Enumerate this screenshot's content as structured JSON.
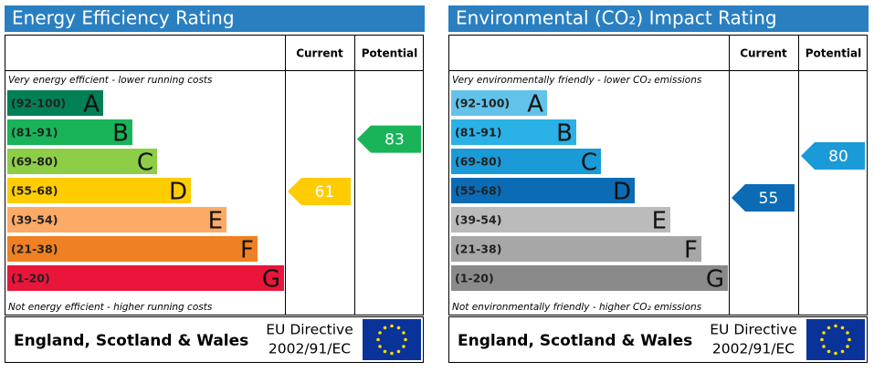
{
  "panels": [
    {
      "title": "Energy Efficiency Rating",
      "columns": [
        "Current",
        "Potential"
      ],
      "top_note": "Very energy efficient - lower running costs",
      "bottom_note": "Not energy efficient - higher running costs",
      "bands": [
        {
          "range": "(92-100)",
          "letter": "A",
          "color": "#008054"
        },
        {
          "range": "(81-91)",
          "letter": "B",
          "color": "#19b459"
        },
        {
          "range": "(69-80)",
          "letter": "C",
          "color": "#8dce46"
        },
        {
          "range": "(55-68)",
          "letter": "D",
          "color": "#ffcc00"
        },
        {
          "range": "(39-54)",
          "letter": "E",
          "color": "#fcaa65"
        },
        {
          "range": "(21-38)",
          "letter": "F",
          "color": "#ef8023"
        },
        {
          "range": "(1-20)",
          "letter": "G",
          "color": "#e9153b"
        }
      ],
      "current": 61,
      "potential": 83,
      "footer": {
        "region": "England, Scotland & Wales",
        "directive": [
          "EU Directive",
          "2002/91/EC"
        ]
      }
    },
    {
      "title": "Environmental (CO₂) Impact Rating",
      "columns": [
        "Current",
        "Potential"
      ],
      "top_note": "Very environmentally friendly - lower CO₂ emissions",
      "bottom_note": "Not environmentally friendly - higher CO₂ emissions",
      "bands": [
        {
          "range": "(92-100)",
          "letter": "A",
          "color": "#63c2ea"
        },
        {
          "range": "(81-91)",
          "letter": "B",
          "color": "#2ab1e6"
        },
        {
          "range": "(69-80)",
          "letter": "C",
          "color": "#1a9bd7"
        },
        {
          "range": "(55-68)",
          "letter": "D",
          "color": "#0b6cb5"
        },
        {
          "range": "(39-54)",
          "letter": "E",
          "color": "#bbbbbb"
        },
        {
          "range": "(21-38)",
          "letter": "F",
          "color": "#a7a7a7"
        },
        {
          "range": "(1-20)",
          "letter": "G",
          "color": "#8a8a8a"
        }
      ],
      "current": 55,
      "potential": 80,
      "footer": {
        "region": "England, Scotland & Wales",
        "directive": [
          "EU Directive",
          "2002/91/EC"
        ]
      }
    }
  ]
}
